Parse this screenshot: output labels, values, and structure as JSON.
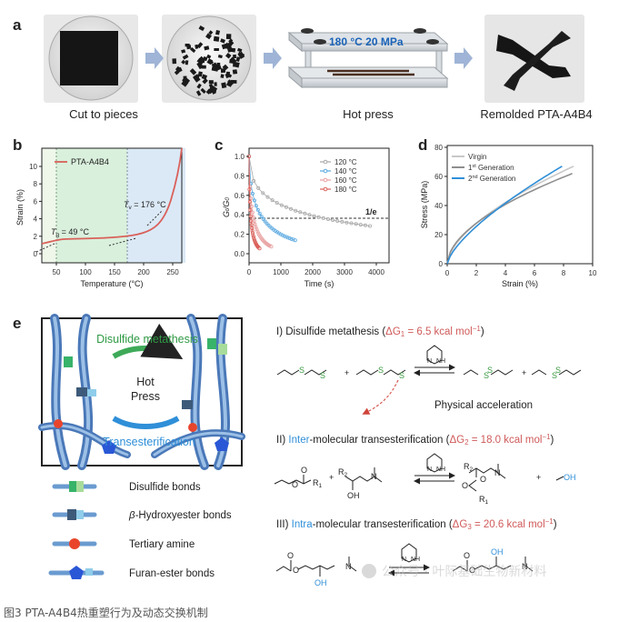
{
  "panels": {
    "a": {
      "letter": "a",
      "steps": [
        "Cut to pieces",
        "Hot press",
        "Remolded PTA-A4B4"
      ],
      "press_label": "180 °C 20 MPa"
    },
    "b": {
      "letter": "b",
      "ylabel": "Strain (%)",
      "xlabel": "Temperature (°C)",
      "legend": "PTA-A4B4",
      "tg_label": "T",
      "tg_sub": "g",
      "tg_value": " = 49 °C",
      "tv_label": "T",
      "tv_sub": "v",
      "tv_value": " = 176 °C",
      "xticks": [
        "50",
        "100",
        "150",
        "200",
        "250"
      ],
      "yticks": [
        "0",
        "2",
        "4",
        "6",
        "8",
        "10"
      ]
    },
    "c": {
      "letter": "c",
      "ylabel_main": "G",
      "ylabel_sub1": "t",
      "ylabel_sep": "/G",
      "ylabel_sub2": "0",
      "xlabel": "Time (s)",
      "inv_e": "1/e",
      "xticks": [
        "0",
        "1000",
        "2000",
        "3000",
        "4000"
      ],
      "yticks": [
        "0.0",
        "0.2",
        "0.4",
        "0.6",
        "0.8",
        "1.0"
      ],
      "legend": [
        "120 °C",
        "140 °C",
        "160 °C",
        "180 °C"
      ]
    },
    "d": {
      "letter": "d",
      "ylabel": "Stress (MPa)",
      "xlabel": "Strain (%)",
      "xticks": [
        "0",
        "2",
        "4",
        "6",
        "8",
        "10"
      ],
      "yticks": [
        "0",
        "20",
        "40",
        "60",
        "80"
      ],
      "legend_virgin": "Virgin",
      "legend_gen1_num": "1",
      "legend_gen1_sup": "st",
      "legend_gen1_rest": " Generation",
      "legend_gen2_num": "2",
      "legend_gen2_sup": "nd",
      "legend_gen2_rest": " Generation"
    },
    "e": {
      "letter": "e",
      "disulfide_metathesis": "Disulfide metathesis",
      "hot": "Hot",
      "press": "Press",
      "transesterification": "Transesterification",
      "legend": {
        "disulfide": "Disulfide bonds",
        "hydroxyester_prefix": "β",
        "hydroxyester_rest": "-Hydroxyester bonds",
        "amine": "Tertiary amine",
        "furan": "Furan-ester bonds"
      },
      "reaction1_title": "I) Disulfide metathesis (",
      "reaction1_energy": "ΔG",
      "reaction1_sub": "1",
      "reaction1_value": " = 6.5 kcal mol",
      "reaction1_sup": "−1",
      "reaction1_close": ")",
      "physical_acceleration": "Physical acceleration",
      "reaction2_prefix": "II) ",
      "reaction2_inter": "Inter",
      "reaction2_rest": "-molecular transesterification (",
      "reaction2_energy": "ΔG",
      "reaction2_sub": "2",
      "reaction2_value": " = 18.0 kcal mol",
      "reaction2_sup": "−1",
      "reaction2_close": ")",
      "reaction3_prefix": "III) ",
      "reaction3_intra": "Intra",
      "reaction3_rest": "-molecular transesterification (",
      "reaction3_energy": "ΔG",
      "reaction3_sub": "3",
      "reaction3_value": " = 20.6 kcal mol",
      "reaction3_sup": "−1",
      "reaction3_close": ")",
      "chem_labels": {
        "S": "S",
        "N": "N",
        "NH": "NH",
        "H": "H",
        "O": "O",
        "OH": "OH",
        "R1": "R",
        "R1_sub": "1",
        "R2": "R",
        "R2_sub": "2",
        "plus": "+"
      }
    }
  },
  "watermark": "公众号 · 叶际基础生物新材料",
  "figure_caption": "图3 PTA-A4B4热重塑行为及动态交换机制",
  "colors": {
    "red_curve": "#d9605a",
    "blue_accent": "#2f8fd8",
    "pink_text": "#d05a5a",
    "green_zone": "#d9f0dc",
    "blue_zone": "#dbe9f6",
    "yellow_zone": "#f7f0d4"
  }
}
